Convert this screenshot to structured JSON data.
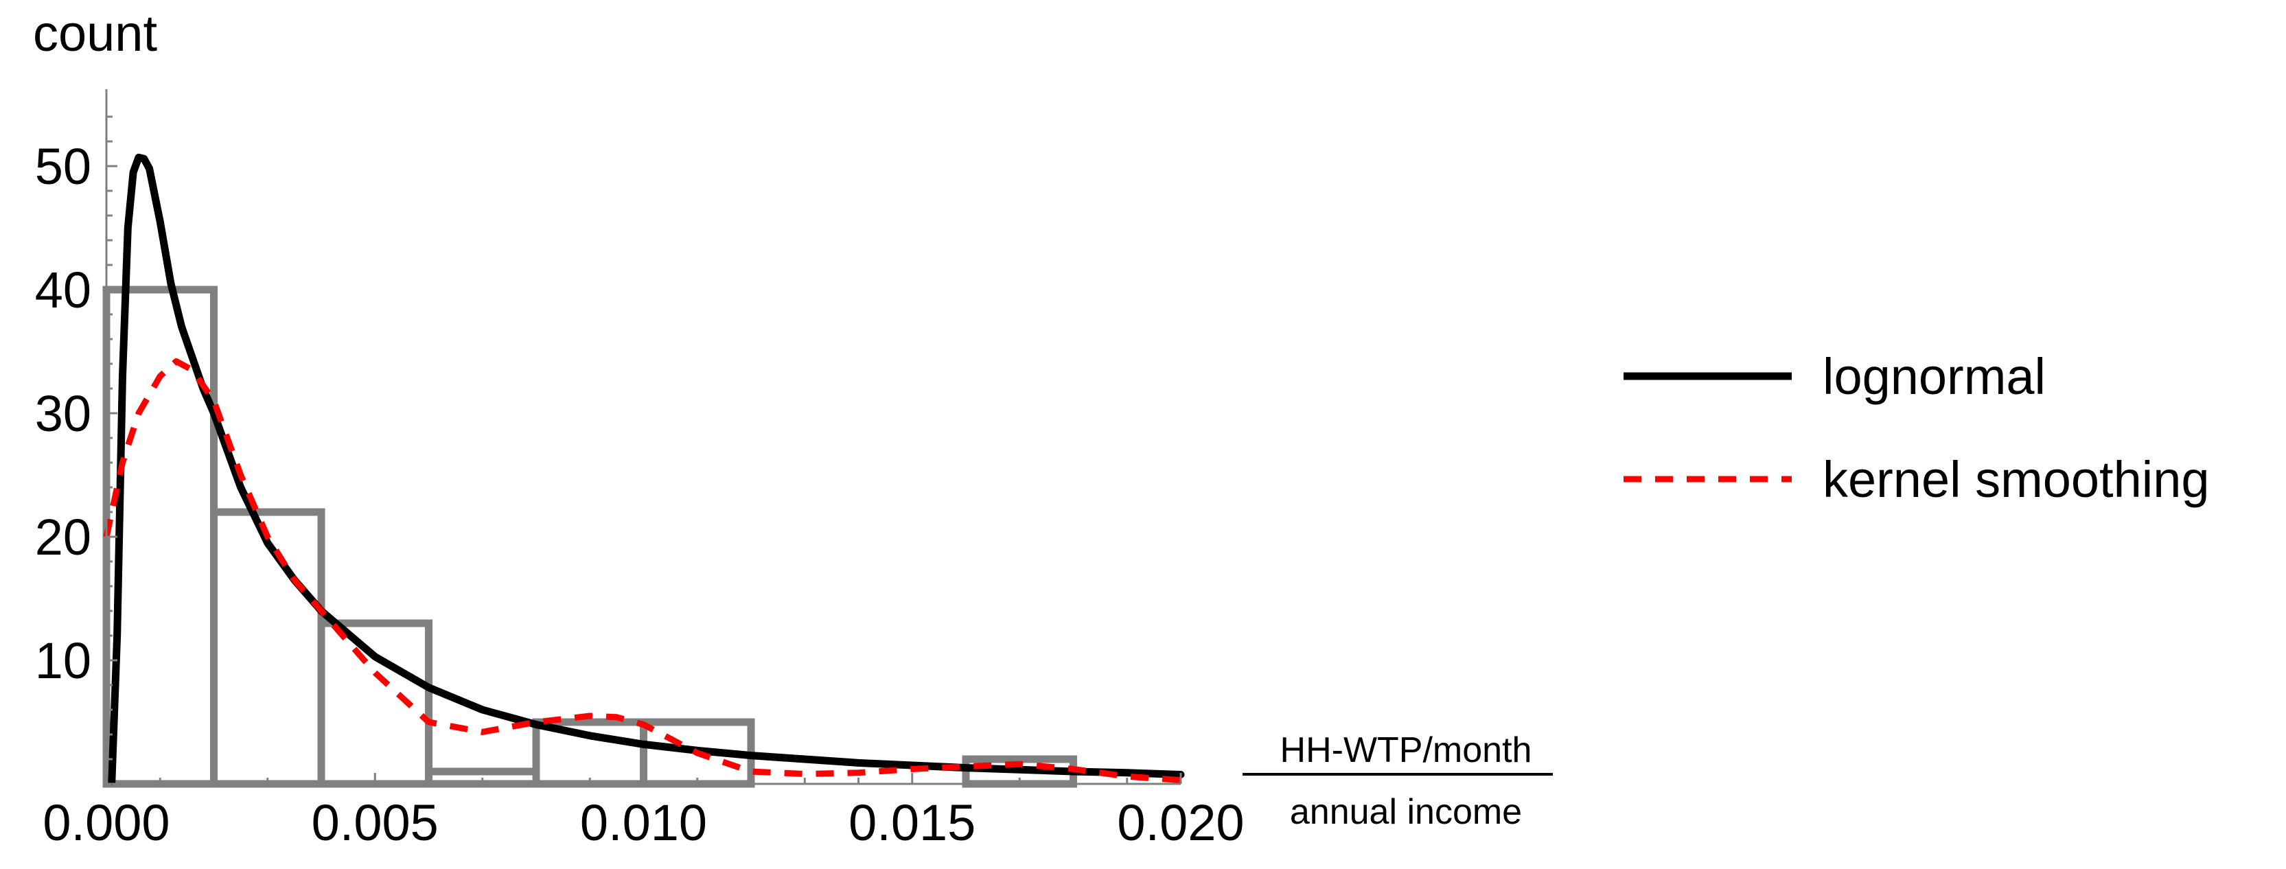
{
  "chart_data": {
    "type": "bar",
    "title": "",
    "ylabel": "count",
    "xlabel_numerator": "HH-WTP/month",
    "xlabel_denominator": "annual income",
    "xlim": [
      0,
      0.02
    ],
    "ylim": [
      0,
      55
    ],
    "x_ticks": [
      "0.000",
      "0.005",
      "0.010",
      "0.015",
      "0.020"
    ],
    "x_tick_values": [
      0,
      0.005,
      0.01,
      0.015,
      0.02
    ],
    "y_ticks": [
      "10",
      "20",
      "30",
      "40",
      "50"
    ],
    "y_tick_values": [
      10,
      20,
      30,
      40,
      50
    ],
    "histogram": {
      "bin_width": 0.002,
      "bins": [
        {
          "x0": 0.0,
          "x1": 0.002,
          "count": 40
        },
        {
          "x0": 0.002,
          "x1": 0.004,
          "count": 22
        },
        {
          "x0": 0.004,
          "x1": 0.006,
          "count": 13
        },
        {
          "x0": 0.006,
          "x1": 0.008,
          "count": 1
        },
        {
          "x0": 0.008,
          "x1": 0.01,
          "count": 5
        },
        {
          "x0": 0.01,
          "x1": 0.012,
          "count": 5
        },
        {
          "x0": 0.012,
          "x1": 0.014,
          "count": 0
        },
        {
          "x0": 0.014,
          "x1": 0.016,
          "count": 0
        },
        {
          "x0": 0.016,
          "x1": 0.018,
          "count": 2
        },
        {
          "x0": 0.018,
          "x1": 0.02,
          "count": 0
        }
      ]
    },
    "series": [
      {
        "name": "lognormal",
        "style": "solid",
        "color": "#000000",
        "x": [
          0.0001,
          0.0002,
          0.0003,
          0.0004,
          0.0005,
          0.0006,
          0.0007,
          0.0008,
          0.001,
          0.0012,
          0.0014,
          0.0016,
          0.0018,
          0.002,
          0.0025,
          0.003,
          0.0035,
          0.004,
          0.005,
          0.006,
          0.007,
          0.008,
          0.009,
          0.01,
          0.011,
          0.012,
          0.013,
          0.014,
          0.015,
          0.016,
          0.017,
          0.018,
          0.019,
          0.02
        ],
        "y": [
          0.2,
          12,
          33,
          45,
          49.5,
          50.7,
          50.6,
          49.8,
          45.5,
          40.5,
          37,
          34.5,
          32,
          30,
          24,
          19.5,
          16.5,
          14,
          10.3,
          7.8,
          6,
          4.8,
          3.9,
          3.2,
          2.7,
          2.3,
          2,
          1.7,
          1.5,
          1.3,
          1.15,
          1,
          0.9,
          0.75
        ]
      },
      {
        "name": "kernel smoothing",
        "style": "dashed",
        "color": "#ff0000",
        "x": [
          0.0,
          0.0003,
          0.0006,
          0.001,
          0.0013,
          0.0016,
          0.002,
          0.0025,
          0.003,
          0.0035,
          0.004,
          0.005,
          0.006,
          0.007,
          0.008,
          0.009,
          0.0095,
          0.01,
          0.011,
          0.012,
          0.013,
          0.014,
          0.015,
          0.016,
          0.017,
          0.018,
          0.019,
          0.02
        ],
        "y": [
          20,
          26,
          30,
          33,
          34.2,
          33.5,
          31,
          25,
          20,
          16.5,
          14,
          9,
          5,
          4.2,
          5,
          5.5,
          5.4,
          4.8,
          2.5,
          1,
          0.8,
          0.9,
          1.2,
          1.4,
          1.6,
          1.2,
          0.6,
          0.3
        ]
      }
    ],
    "legend_position": "right"
  }
}
